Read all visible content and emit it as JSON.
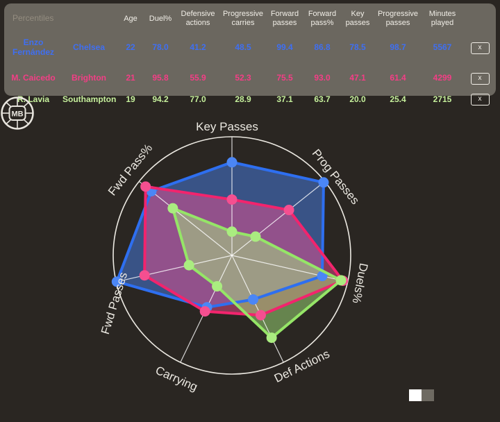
{
  "table": {
    "corner_label": "Percentiles",
    "columns": [
      "Age",
      "Duel%",
      "Defensive actions",
      "Progressive carries",
      "Forward passes",
      "Forward pass%",
      "Key passes",
      "Progressive passes",
      "Minutes played"
    ],
    "remove_button_label": "x",
    "players": [
      {
        "name": "Enzo Fernández",
        "team": "Chelsea",
        "text_color": "#3f6ff2",
        "values": [
          "22",
          "78.0",
          "41.2",
          "48.5",
          "99.4",
          "86.8",
          "78.5",
          "98.7",
          "5567"
        ]
      },
      {
        "name": "M. Caicedo",
        "team": "Brighton",
        "text_color": "#f43e86",
        "values": [
          "21",
          "95.8",
          "55.9",
          "52.3",
          "75.5",
          "93.0",
          "47.1",
          "61.4",
          "4299"
        ]
      },
      {
        "name": "R. Lavia",
        "team": "Southampton",
        "text_color": "#c6f09c",
        "values": [
          "19",
          "94.2",
          "77.0",
          "28.9",
          "37.1",
          "63.7",
          "20.0",
          "25.4",
          "2715"
        ]
      }
    ]
  },
  "chart_data": {
    "type": "radar",
    "axes": [
      "Key Passes",
      "Prog Passes",
      "Duels%",
      "Def Actions",
      "Carrying",
      "Fwd Passes",
      "Fwd Pass%"
    ],
    "range": [
      0,
      100
    ],
    "grid": "spokes-and-outer-ring-only",
    "series": [
      {
        "name": "Enzo Fernández",
        "line_color": "#2e6ff0",
        "marker_color": "#4b86f5",
        "values": [
          78.5,
          98.7,
          78.0,
          41.2,
          48.5,
          99.4,
          86.8
        ]
      },
      {
        "name": "M. Caicedo",
        "line_color": "#f2246d",
        "marker_color": "#f54f90",
        "values": [
          47.1,
          61.4,
          95.8,
          55.9,
          52.3,
          75.5,
          93.0
        ]
      },
      {
        "name": "R. Lavia",
        "line_color": "#95e567",
        "marker_color": "#aaec80",
        "values": [
          20.0,
          25.4,
          94.2,
          77.0,
          28.9,
          37.1,
          63.7
        ]
      }
    ]
  },
  "logo": {
    "text": "MB"
  },
  "colors": {
    "page_background": "#2a2622",
    "card_background": "#6b675f",
    "ring": "#ece9e2",
    "spoke": "#ffffff",
    "label_text": "#ece9e2"
  }
}
